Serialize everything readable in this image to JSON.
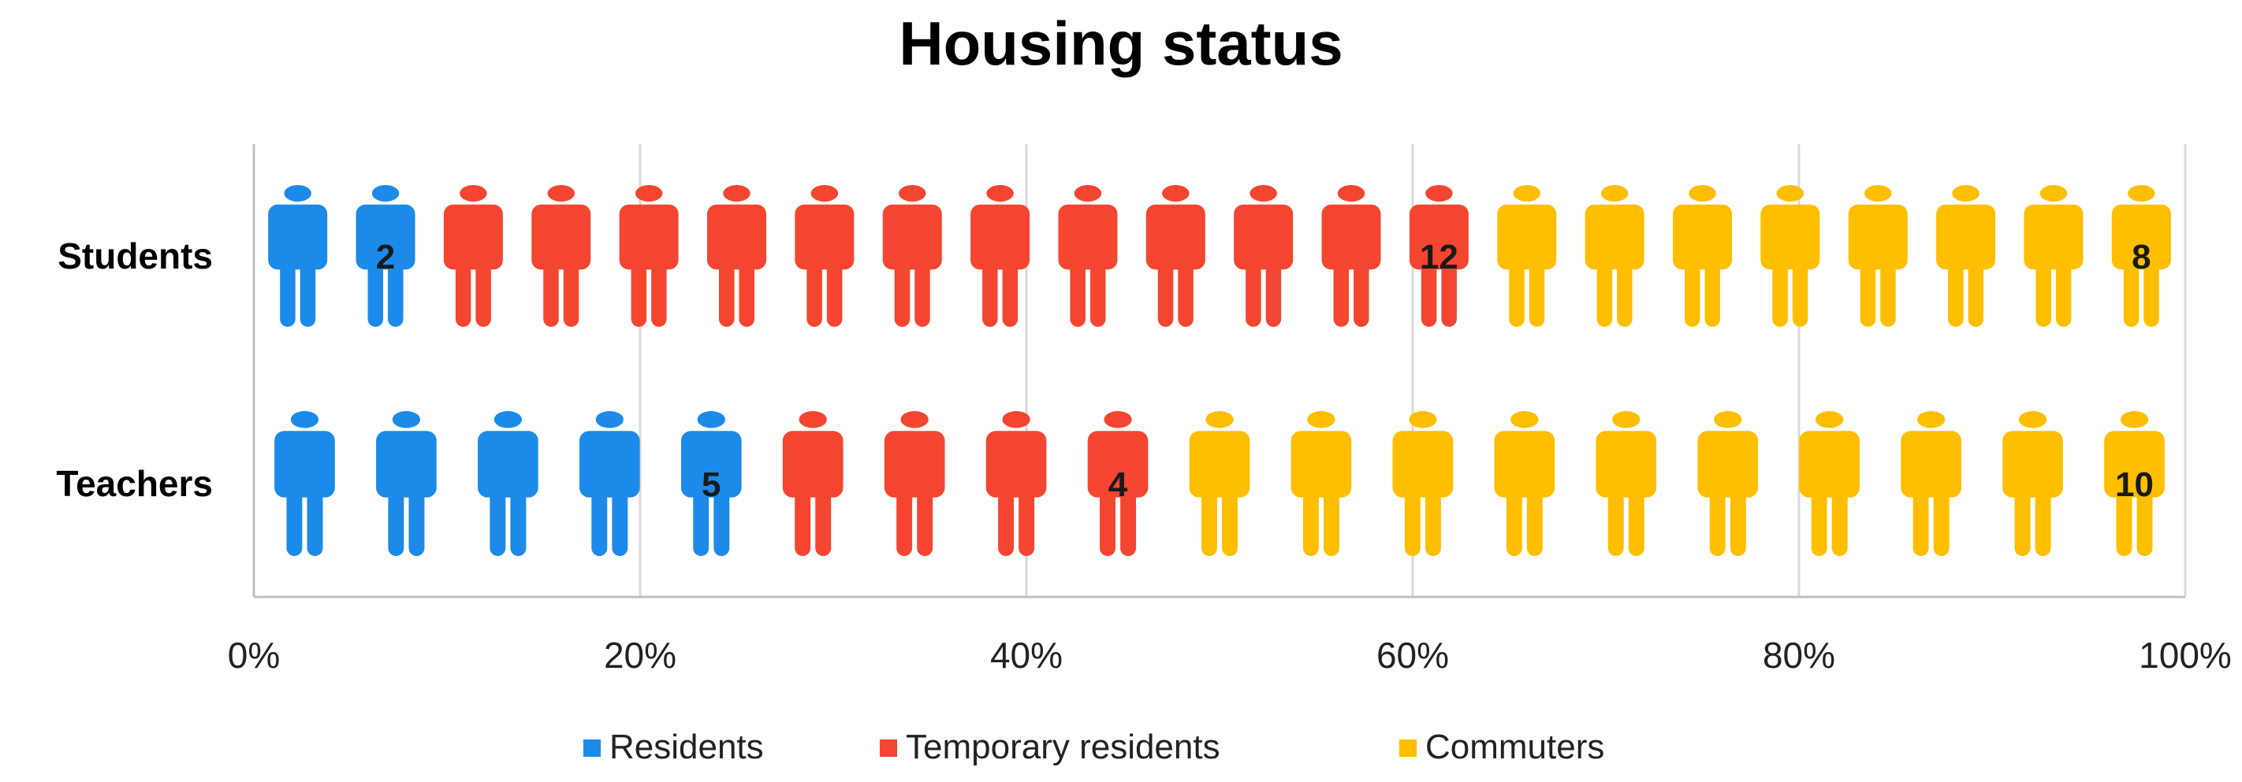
{
  "chart_data": {
    "type": "bar",
    "title": "Housing status",
    "subtype": "stacked-percent-pictograph",
    "categories": [
      "Students",
      "Teachers"
    ],
    "series": [
      {
        "name": "Residents",
        "color": "#1C8AE8",
        "values": [
          2,
          5
        ],
        "value_labels": [
          "2",
          "5"
        ]
      },
      {
        "name": "Temporary residents",
        "color": "#F44531",
        "values": [
          12,
          4
        ],
        "value_labels": [
          "12",
          "4"
        ]
      },
      {
        "name": "Commuters",
        "color": "#FFBE00",
        "values": [
          8,
          10
        ],
        "value_labels": [
          "8",
          "10"
        ]
      }
    ],
    "xlim": [
      0,
      100
    ],
    "x_ticks": [
      "0%",
      "20%",
      "40%",
      "60%",
      "80%",
      "100%"
    ],
    "grid": true,
    "legend_position": "bottom",
    "icon": "person-icon"
  }
}
